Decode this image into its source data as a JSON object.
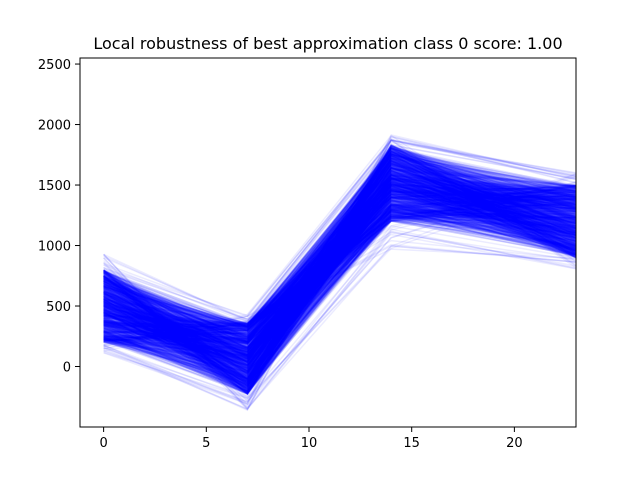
{
  "chart_data": {
    "type": "line",
    "title": "Local robustness of best approximation class 0 score: 1.00",
    "xlabel": "",
    "ylabel": "",
    "xlim": [
      -1.15,
      23
    ],
    "ylim": [
      -500,
      2550
    ],
    "x_ticks": [
      0,
      5,
      10,
      15,
      20
    ],
    "y_ticks": [
      0,
      500,
      1000,
      1500,
      2000,
      2500
    ],
    "grid": false,
    "legend": "none",
    "line_color": "#0000ff",
    "line_alpha": 0.1,
    "num_series_approx": 1000,
    "x": [
      0,
      7,
      14,
      23
    ],
    "envelope": {
      "upper": [
        930,
        440,
        1920,
        1620
      ],
      "lower": [
        110,
        -360,
        970,
        790
      ]
    },
    "dense_band": {
      "upper": [
        800,
        360,
        1830,
        1500
      ],
      "lower": [
        200,
        -230,
        1200,
        900
      ]
    }
  }
}
